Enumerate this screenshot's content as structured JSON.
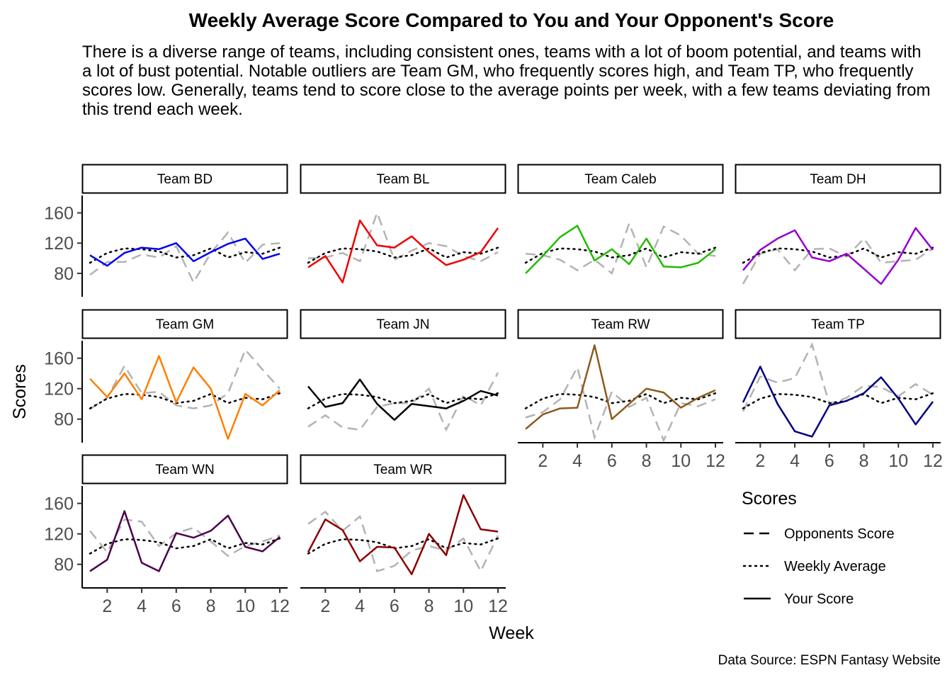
{
  "title": "Weekly Average Score Compared to You and Your Opponent's Score",
  "subtitle": "There is a diverse range of teams, including consistent ones, teams with a lot of boom potential, and teams with a lot of bust potential. Notable outliers are Team GM, who frequently scores high, and Team TP, who frequently scores low. Generally, teams tend to score close to the average points per week, with a few teams deviating from this trend each week.",
  "caption": "Data Source: ESPN Fantasy Website",
  "chart_data": {
    "type": "line",
    "xlabel": "Week",
    "ylabel": "Scores",
    "x": [
      1,
      2,
      3,
      4,
      5,
      6,
      7,
      8,
      9,
      10,
      11,
      12
    ],
    "xticks": [
      2,
      4,
      6,
      8,
      10,
      12
    ],
    "yticks": [
      80,
      120,
      160
    ],
    "xlim": [
      0.55,
      12.45
    ],
    "ylim": [
      49,
      183
    ],
    "grid": false,
    "legend": {
      "title": "Scores",
      "position": "right",
      "entries": [
        {
          "label": "Opponents Score",
          "linetype": "dashed"
        },
        {
          "label": "Weekly Average",
          "linetype": "dotted"
        },
        {
          "label": "Your Score",
          "linetype": "solid"
        }
      ]
    },
    "weekly_average": [
      94,
      107,
      113,
      112,
      109,
      101,
      104,
      113,
      101,
      108,
      106,
      114
    ],
    "panels": [
      {
        "label": "Team BD",
        "color": "#0000ee",
        "your_score": [
          104,
          90,
          107,
          114,
          112,
          120,
          96,
          108,
          119,
          126,
          99,
          106
        ],
        "opponents_score": [
          78,
          95,
          95,
          105,
          101,
          116,
          68,
          107,
          134,
          94,
          118,
          120
        ]
      },
      {
        "label": "Team BL",
        "color": "#ee0000",
        "your_score": [
          88,
          103,
          68,
          150,
          117,
          114,
          129,
          108,
          91,
          98,
          108,
          140
        ],
        "opponents_score": [
          100,
          101,
          107,
          96,
          160,
          98,
          110,
          120,
          116,
          103,
          96,
          108
        ]
      },
      {
        "label": "Team Caleb",
        "color": "#22bb00",
        "your_score": [
          80,
          103,
          128,
          143,
          97,
          112,
          92,
          126,
          89,
          88,
          94,
          112
        ],
        "opponents_score": [
          106,
          104,
          98,
          84,
          98,
          80,
          146,
          88,
          142,
          130,
          106,
          103
        ]
      },
      {
        "label": "Team DH",
        "color": "#9400d3",
        "your_score": [
          84,
          111,
          126,
          137,
          101,
          96,
          106,
          86,
          66,
          98,
          140,
          111
        ],
        "opponents_score": [
          66,
          106,
          112,
          84,
          112,
          113,
          102,
          126,
          94,
          96,
          98,
          113
        ]
      },
      {
        "label": "Team GM",
        "color": "#ff7f00",
        "your_score": [
          133,
          109,
          140,
          106,
          163,
          102,
          148,
          120,
          54,
          113,
          98,
          118
        ],
        "opponents_score": [
          93,
          108,
          150,
          114,
          116,
          98,
          94,
          98,
          114,
          171,
          145,
          120
        ]
      },
      {
        "label": "Team JN",
        "color": "#000000",
        "your_score": [
          123,
          96,
          101,
          132,
          100,
          79,
          100,
          97,
          94,
          104,
          117,
          111
        ],
        "opponents_score": [
          70,
          85,
          69,
          66,
          96,
          101,
          101,
          120,
          66,
          111,
          98,
          141
        ]
      },
      {
        "label": "Team RW",
        "color": "#8b5a1b",
        "your_score": [
          67,
          86,
          94,
          95,
          177,
          80,
          100,
          120,
          115,
          95,
          108,
          118
        ],
        "opponents_score": [
          82,
          89,
          106,
          148,
          56,
          116,
          96,
          108,
          52,
          101,
          97,
          106
        ]
      },
      {
        "label": "Team TP",
        "color": "#000080",
        "your_score": [
          102,
          149,
          100,
          64,
          57,
          98,
          104,
          114,
          135,
          107,
          73,
          103
        ],
        "opponents_score": [
          90,
          136,
          128,
          134,
          178,
          100,
          108,
          124,
          122,
          110,
          126,
          112
        ]
      },
      {
        "label": "Team WN",
        "color": "#4b004b",
        "your_score": [
          71,
          86,
          150,
          82,
          71,
          121,
          115,
          124,
          144,
          103,
          97,
          116
        ],
        "opponents_score": [
          124,
          96,
          139,
          136,
          104,
          121,
          128,
          110,
          91,
          104,
          110,
          118
        ]
      },
      {
        "label": "Team WR",
        "color": "#8b0000",
        "your_score": [
          96,
          139,
          125,
          84,
          103,
          102,
          67,
          120,
          92,
          171,
          126,
          123
        ],
        "opponents_score": [
          133,
          149,
          124,
          143,
          71,
          78,
          98,
          104,
          98,
          114,
          71,
          118
        ]
      }
    ]
  }
}
